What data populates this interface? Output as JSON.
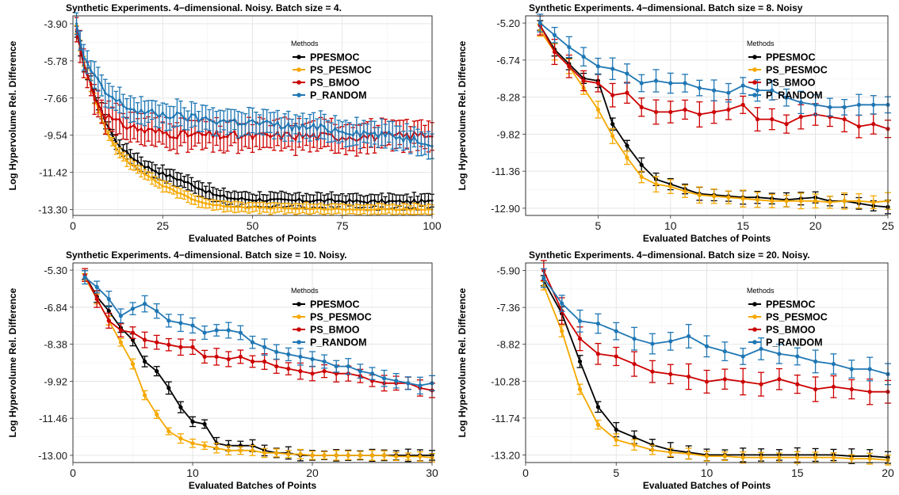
{
  "figure": {
    "axis_common": {
      "xlabel": "Evaluated Batches of Points",
      "ylabel": "Log Hypervolume Rel. Difference"
    },
    "legend_title": "Methods",
    "methods": [
      "PPESMOC",
      "PS_PESMOC",
      "PS_BMOO",
      "P_RANDOM"
    ],
    "colors": {
      "PPESMOC": "#000000",
      "PS_PESMOC": "#F5A800",
      "PS_BMOO": "#CC0000",
      "P_RANDOM": "#1F77B4"
    }
  },
  "chart_data": [
    {
      "type": "line",
      "title": "Synthetic Experiments. 4−dimensional. Noisy. Batch size = 4.",
      "xlabel": "Evaluated Batches of Points",
      "ylabel": "Log Hypervolume Rel. Difference",
      "xlim": [
        0,
        100
      ],
      "ylim": [
        -13.6,
        -3.5
      ],
      "xticks": [
        0,
        25,
        50,
        75,
        100
      ],
      "yticks": [
        -3.9,
        -5.78,
        -7.66,
        -9.54,
        -11.42,
        -13.3
      ],
      "ytick_labels": [
        "-3.90",
        "-5.78",
        "-7.66",
        "-9.54",
        "-11.42",
        "-13.30"
      ],
      "xrange_points": [
        1,
        100
      ],
      "grid": true,
      "legend": "top-right",
      "series": [
        {
          "name": "PPESMOC",
          "knots": [
            [
              1,
              -4.3
            ],
            [
              3,
              -6.0
            ],
            [
              6,
              -7.5
            ],
            [
              9,
              -8.8
            ],
            [
              12,
              -9.9
            ],
            [
              16,
              -10.6
            ],
            [
              20,
              -11.1
            ],
            [
              25,
              -11.5
            ],
            [
              30,
              -11.8
            ],
            [
              35,
              -12.2
            ],
            [
              40,
              -12.6
            ],
            [
              45,
              -12.75
            ],
            [
              50,
              -12.8
            ],
            [
              60,
              -12.85
            ],
            [
              70,
              -12.85
            ],
            [
              80,
              -12.9
            ],
            [
              90,
              -12.9
            ],
            [
              100,
              -12.9
            ]
          ],
          "err": 0.35,
          "noise": 0.08
        },
        {
          "name": "PS_PESMOC",
          "knots": [
            [
              1,
              -4.2
            ],
            [
              3,
              -5.8
            ],
            [
              6,
              -7.7
            ],
            [
              9,
              -9.2
            ],
            [
              12,
              -10.2
            ],
            [
              16,
              -11.0
            ],
            [
              20,
              -11.5
            ],
            [
              25,
              -12.1
            ],
            [
              30,
              -12.5
            ],
            [
              35,
              -12.9
            ],
            [
              40,
              -13.1
            ],
            [
              50,
              -13.2
            ],
            [
              60,
              -13.25
            ],
            [
              80,
              -13.3
            ],
            [
              100,
              -13.3
            ]
          ],
          "err": 0.25,
          "noise": 0.04
        },
        {
          "name": "PS_BMOO",
          "knots": [
            [
              1,
              -4.2
            ],
            [
              3,
              -5.9
            ],
            [
              6,
              -7.6
            ],
            [
              9,
              -8.5
            ],
            [
              12,
              -8.9
            ],
            [
              16,
              -9.1
            ],
            [
              20,
              -9.3
            ],
            [
              30,
              -9.5
            ],
            [
              40,
              -9.55
            ],
            [
              50,
              -9.6
            ],
            [
              60,
              -9.55
            ],
            [
              70,
              -9.6
            ],
            [
              80,
              -9.6
            ],
            [
              90,
              -9.6
            ],
            [
              100,
              -9.5
            ]
          ],
          "err": 0.7,
          "noise": 0.22
        },
        {
          "name": "P_RANDOM",
          "knots": [
            [
              1,
              -3.9
            ],
            [
              3,
              -5.6
            ],
            [
              6,
              -6.6
            ],
            [
              9,
              -7.4
            ],
            [
              12,
              -7.8
            ],
            [
              16,
              -8.2
            ],
            [
              20,
              -8.4
            ],
            [
              30,
              -8.6
            ],
            [
              40,
              -8.8
            ],
            [
              50,
              -8.9
            ],
            [
              60,
              -9.1
            ],
            [
              70,
              -9.2
            ],
            [
              80,
              -9.4
            ],
            [
              90,
              -9.6
            ],
            [
              100,
              -9.9
            ]
          ],
          "err": 0.6,
          "noise": 0.2
        }
      ]
    },
    {
      "type": "line",
      "title": "Synthetic Experiments. 4−dimensional. Batch size = 8. Noisy",
      "xlabel": "Evaluated Batches of Points",
      "ylabel": "Log Hypervolume Rel. Difference",
      "xlim": [
        0,
        25
      ],
      "ylim": [
        -13.2,
        -4.9
      ],
      "xticks": [
        5,
        10,
        15,
        20,
        25
      ],
      "yticks": [
        -5.2,
        -6.74,
        -8.28,
        -9.82,
        -11.36,
        -12.9
      ],
      "ytick_labels": [
        "-5.20",
        "-6.74",
        "-8.28",
        "-9.82",
        "-11.36",
        "-12.90"
      ],
      "xrange_points": [
        1,
        25
      ],
      "grid": true,
      "legend": "top-right",
      "series": [
        {
          "name": "PPESMOC",
          "values": [
            -5.3,
            -6.3,
            -6.9,
            -7.5,
            -7.6,
            -9.4,
            -10.3,
            -11.1,
            -11.7,
            -11.9,
            -12.1,
            -12.3,
            -12.35,
            -12.4,
            -12.45,
            -12.45,
            -12.5,
            -12.55,
            -12.5,
            -12.45,
            -12.6,
            -12.6,
            -12.7,
            -12.8,
            -12.85
          ],
          "err": 0.25
        },
        {
          "name": "PS_PESMOC",
          "values": [
            -5.5,
            -6.4,
            -7.0,
            -7.9,
            -8.8,
            -9.9,
            -10.8,
            -11.6,
            -11.9,
            -12.0,
            -12.2,
            -12.35,
            -12.4,
            -12.45,
            -12.5,
            -12.55,
            -12.6,
            -12.6,
            -12.6,
            -12.6,
            -12.65,
            -12.6,
            -12.6,
            -12.65,
            -12.6
          ],
          "err": 0.3
        },
        {
          "name": "PS_BMOO",
          "values": [
            -5.3,
            -6.4,
            -7.0,
            -7.6,
            -7.7,
            -8.2,
            -8.1,
            -8.7,
            -8.9,
            -8.9,
            -8.8,
            -9.0,
            -8.9,
            -8.8,
            -8.6,
            -9.2,
            -9.2,
            -9.4,
            -9.1,
            -9.0,
            -9.1,
            -9.2,
            -9.5,
            -9.4,
            -9.6
          ],
          "err": 0.45
        },
        {
          "name": "P_RANDOM",
          "values": [
            -5.2,
            -5.7,
            -6.2,
            -6.6,
            -7.0,
            -7.1,
            -7.3,
            -7.7,
            -7.6,
            -7.7,
            -7.7,
            -7.9,
            -8.0,
            -8.1,
            -7.8,
            -8.0,
            -8.0,
            -8.3,
            -8.5,
            -8.6,
            -8.7,
            -8.7,
            -8.6,
            -8.6,
            -8.6
          ],
          "err": 0.4
        }
      ]
    },
    {
      "type": "line",
      "title": "Synthetic Experiments. 4−dimensional. Batch size = 10. Noisy.",
      "xlabel": "Evaluated Batches of Points",
      "ylabel": "Log Hypervolume Rel. Difference",
      "xlim": [
        0,
        30
      ],
      "ylim": [
        -13.3,
        -5.0
      ],
      "xticks": [
        0,
        10,
        20,
        30
      ],
      "yticks": [
        -5.3,
        -6.84,
        -8.38,
        -9.92,
        -11.46,
        -13.0
      ],
      "ytick_labels": [
        "-5.30",
        "-6.84",
        "-8.38",
        "-9.92",
        "-11.46",
        "-13.00"
      ],
      "xrange_points": [
        1,
        30
      ],
      "grid": true,
      "legend": "top-right",
      "series": [
        {
          "name": "PPESMOC",
          "values": [
            -5.5,
            -6.4,
            -7.0,
            -7.7,
            -8.2,
            -9.1,
            -9.5,
            -10.2,
            -11.0,
            -11.6,
            -11.7,
            -12.5,
            -12.6,
            -12.6,
            -12.6,
            -12.8,
            -12.9,
            -12.9,
            -13.0,
            -13.0,
            -13.0,
            -13.0,
            -13.0,
            -13.0,
            -13.0,
            -13.0,
            -13.0,
            -13.0,
            -13.0,
            -13.0
          ],
          "err": 0.22
        },
        {
          "name": "PS_PESMOC",
          "values": [
            -5.6,
            -6.5,
            -7.4,
            -8.3,
            -9.2,
            -10.5,
            -11.3,
            -12.0,
            -12.3,
            -12.5,
            -12.6,
            -12.7,
            -12.8,
            -12.8,
            -12.8,
            -12.9,
            -12.9,
            -12.95,
            -12.95,
            -13.0,
            -13.0,
            -13.0,
            -13.0,
            -13.0,
            -13.0,
            -13.0,
            -13.05,
            -13.05,
            -13.05,
            -13.1
          ],
          "err": 0.18
        },
        {
          "name": "PS_BMOO",
          "values": [
            -5.5,
            -6.5,
            -7.4,
            -7.8,
            -7.9,
            -8.2,
            -8.3,
            -8.4,
            -8.5,
            -8.5,
            -8.9,
            -8.9,
            -9.0,
            -8.9,
            -9.1,
            -9.1,
            -9.3,
            -9.4,
            -9.5,
            -9.6,
            -9.5,
            -9.6,
            -9.6,
            -9.7,
            -9.9,
            -10.0,
            -10.0,
            -10.0,
            -10.2,
            -10.3
          ],
          "err": 0.3
        },
        {
          "name": "P_RANDOM",
          "values": [
            -5.6,
            -6.0,
            -6.5,
            -7.2,
            -6.9,
            -6.7,
            -7.0,
            -7.4,
            -7.5,
            -7.6,
            -7.9,
            -7.8,
            -7.8,
            -7.9,
            -8.3,
            -8.5,
            -8.7,
            -8.8,
            -8.9,
            -9.0,
            -9.1,
            -9.3,
            -9.3,
            -9.5,
            -9.6,
            -9.8,
            -9.9,
            -10.0,
            -10.1,
            -10.0
          ],
          "err": 0.3
        }
      ]
    },
    {
      "type": "line",
      "title": "Synthetic Experiments. 4−dimensional. Batch size = 20. Noisy.",
      "xlabel": "Evaluated Batches of Points",
      "ylabel": "Log Hypervolume Rel. Difference",
      "xlim": [
        0,
        20
      ],
      "ylim": [
        -13.5,
        -5.6
      ],
      "xticks": [
        0,
        5,
        10,
        15,
        20
      ],
      "yticks": [
        -5.9,
        -7.36,
        -8.82,
        -10.28,
        -11.74,
        -13.2
      ],
      "ytick_labels": [
        "-5.90",
        "-7.36",
        "-8.82",
        "-10.28",
        "-11.74",
        "-13.20"
      ],
      "xrange_points": [
        1,
        20
      ],
      "grid": true,
      "legend": "top-right",
      "series": [
        {
          "name": "PPESMOC",
          "values": [
            -6.3,
            -7.6,
            -9.5,
            -11.3,
            -12.2,
            -12.5,
            -12.8,
            -13.0,
            -13.1,
            -13.2,
            -13.2,
            -13.2,
            -13.2,
            -13.2,
            -13.2,
            -13.2,
            -13.2,
            -13.25,
            -13.25,
            -13.3
          ],
          "err": 0.25
        },
        {
          "name": "PS_PESMOC",
          "values": [
            -6.5,
            -8.3,
            -10.6,
            -12.0,
            -12.6,
            -12.8,
            -13.0,
            -13.1,
            -13.15,
            -13.25,
            -13.25,
            -13.3,
            -13.3,
            -13.3,
            -13.3,
            -13.3,
            -13.3,
            -13.35,
            -13.35,
            -13.4
          ],
          "err": 0.2
        },
        {
          "name": "PS_BMOO",
          "values": [
            -5.9,
            -7.5,
            -8.6,
            -9.2,
            -9.3,
            -9.6,
            -9.9,
            -10.0,
            -10.1,
            -10.3,
            -10.2,
            -10.3,
            -10.4,
            -10.2,
            -10.4,
            -10.6,
            -10.5,
            -10.6,
            -10.7,
            -10.7
          ],
          "err": 0.45
        },
        {
          "name": "P_RANDOM",
          "values": [
            -6.2,
            -7.2,
            -7.9,
            -8.0,
            -8.3,
            -8.6,
            -8.8,
            -8.7,
            -8.5,
            -8.9,
            -9.1,
            -9.3,
            -9.0,
            -9.2,
            -9.3,
            -9.5,
            -9.6,
            -9.8,
            -9.8,
            -10.0
          ],
          "err": 0.4
        }
      ]
    }
  ]
}
